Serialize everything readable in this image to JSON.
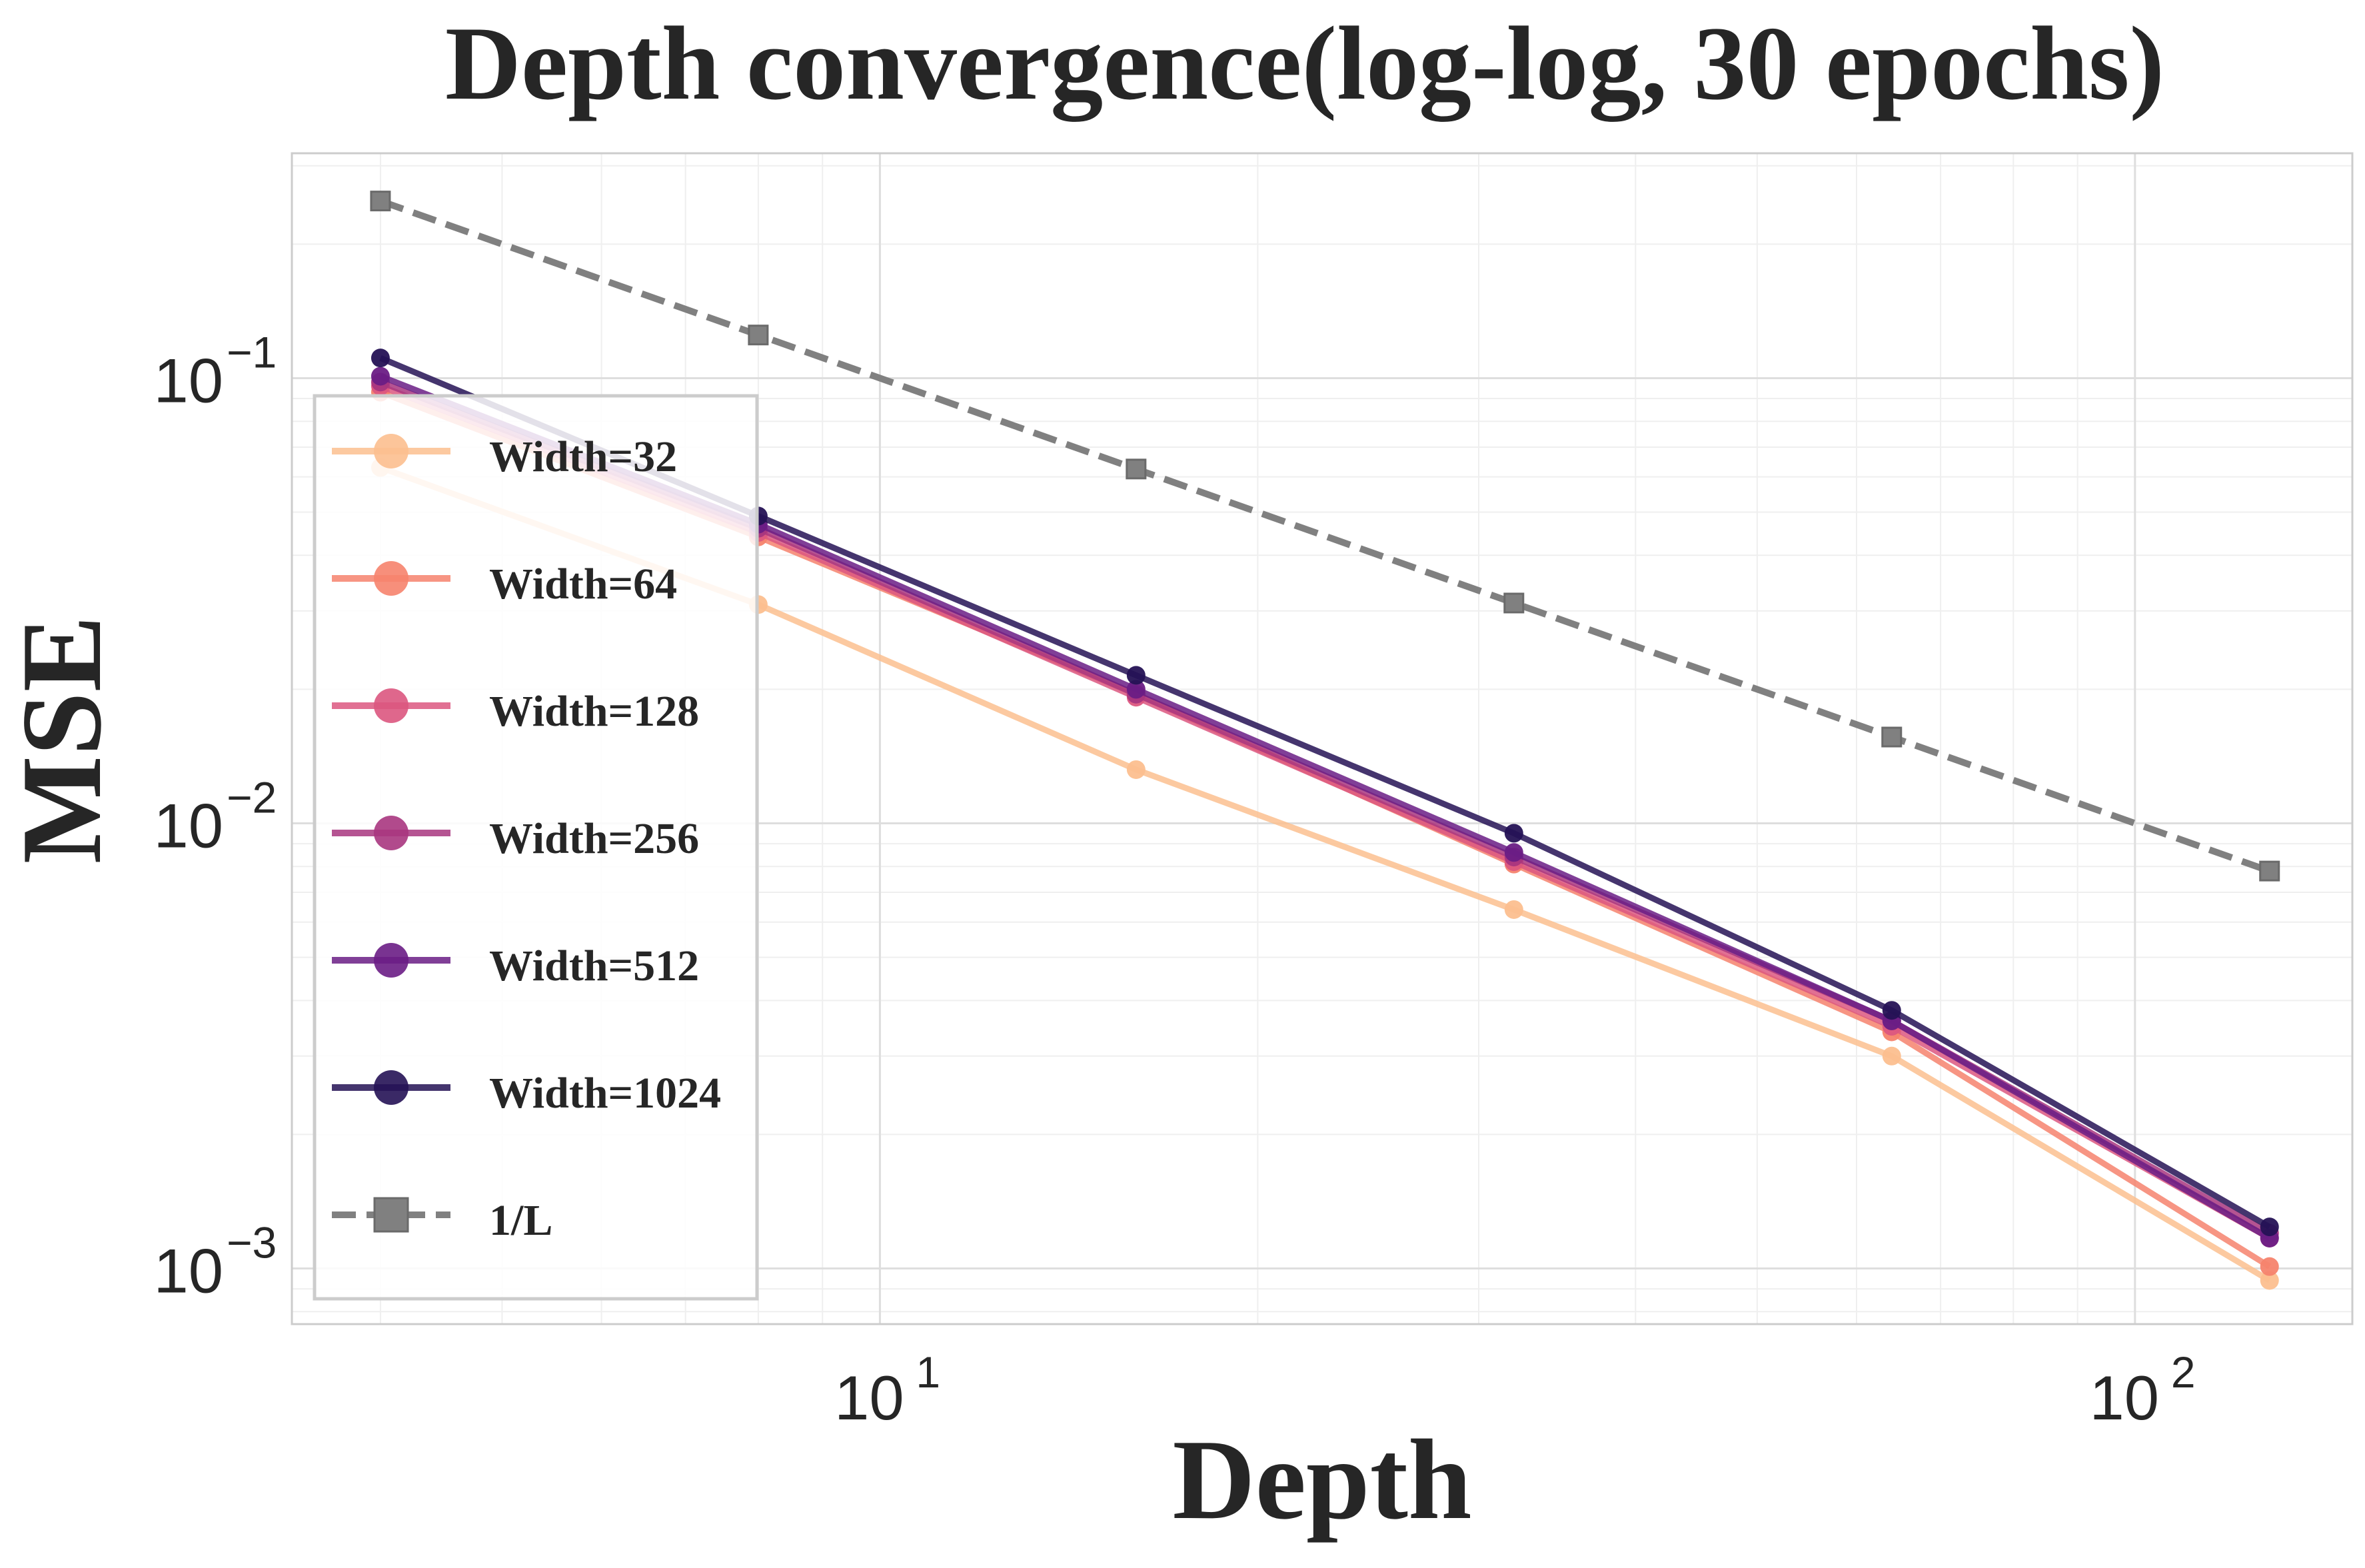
{
  "chart_data": {
    "type": "line",
    "title": "Depth convergence(log-log, 30 epochs)",
    "xlabel": "Depth",
    "ylabel": "MSE",
    "xscale": "log",
    "yscale": "log",
    "xlim": [
      3.4,
      149
    ],
    "ylim": [
      0.00075,
      0.32
    ],
    "x": [
      4,
      8,
      16,
      32,
      64,
      128
    ],
    "grid": true,
    "legend_position": "center-left",
    "x_ticks": [
      {
        "value": 10,
        "base": "10",
        "exp": "1"
      },
      {
        "value": 100,
        "base": "10",
        "exp": "2"
      }
    ],
    "y_ticks": [
      {
        "value": 0.1,
        "base": "10",
        "exp": "−1"
      },
      {
        "value": 0.01,
        "base": "10",
        "exp": "−2"
      },
      {
        "value": 0.001,
        "base": "10",
        "exp": "−3"
      }
    ],
    "series": [
      {
        "name": "Width=32",
        "color": "#fcbf8f",
        "marker": "circle",
        "linestyle": "solid",
        "values": [
          0.063,
          0.031,
          0.0132,
          0.0064,
          0.003,
          0.00094
        ]
      },
      {
        "name": "Width=64",
        "color": "#f6836d",
        "marker": "circle",
        "linestyle": "solid",
        "values": [
          0.093,
          0.044,
          0.0195,
          0.0081,
          0.0034,
          0.00101
        ]
      },
      {
        "name": "Width=128",
        "color": "#dc5780",
        "marker": "circle",
        "linestyle": "solid",
        "values": [
          0.096,
          0.045,
          0.0192,
          0.0082,
          0.0035,
          0.00117
        ]
      },
      {
        "name": "Width=256",
        "color": "#a8367f",
        "marker": "circle",
        "linestyle": "solid",
        "values": [
          0.098,
          0.046,
          0.0195,
          0.0084,
          0.0036,
          0.0012
        ]
      },
      {
        "name": "Width=512",
        "color": "#6a1d85",
        "marker": "circle",
        "linestyle": "solid",
        "values": [
          0.101,
          0.047,
          0.02,
          0.0086,
          0.0036,
          0.00117
        ]
      },
      {
        "name": "Width=1024",
        "color": "#251255",
        "marker": "circle",
        "linestyle": "solid",
        "values": [
          0.111,
          0.049,
          0.0215,
          0.0095,
          0.0038,
          0.00124
        ]
      },
      {
        "name": "1/L",
        "color": "#808080",
        "marker": "square",
        "linestyle": "dashed",
        "values": [
          0.25,
          0.125,
          0.0625,
          0.03125,
          0.015625,
          0.0078125
        ]
      }
    ]
  }
}
